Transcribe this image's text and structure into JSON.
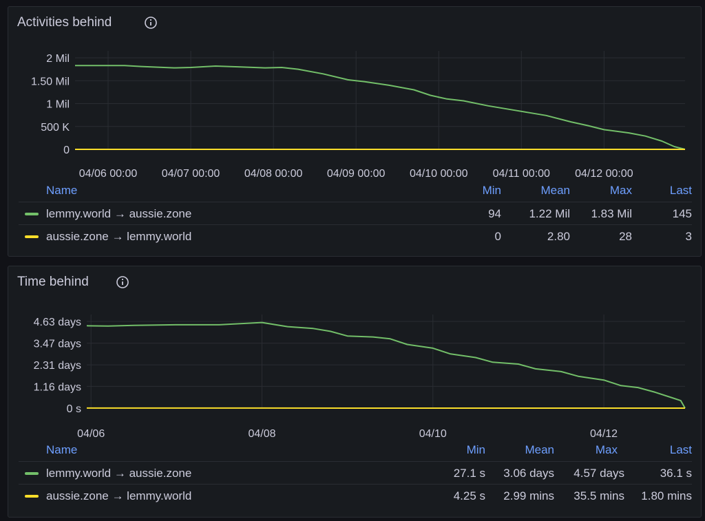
{
  "panels": [
    {
      "title": "Activities behind",
      "info_icon": "info-circle-icon",
      "chart_data": {
        "type": "line",
        "y_ticks": [
          "2 Mil",
          "1.50 Mil",
          "1 Mil",
          "500 K",
          "0"
        ],
        "y_tick_values": [
          2000000,
          1500000,
          1000000,
          500000,
          0
        ],
        "x_ticks": [
          "04/06 00:00",
          "04/07 00:00",
          "04/08 00:00",
          "04/09 00:00",
          "04/10 00:00",
          "04/11 00:00",
          "04/12 00:00"
        ],
        "x_tick_values": [
          0,
          1,
          2,
          3,
          4,
          5,
          6
        ],
        "x_range_days": [
          -0.4,
          6.98
        ],
        "ylim": [
          0,
          2000000
        ],
        "grid": true,
        "series": [
          {
            "name": "lemmy.world → aussie.zone",
            "color": "#73bf69",
            "points": [
              [
                -0.4,
                1830000
              ],
              [
                0.2,
                1830000
              ],
              [
                0.4,
                1810000
              ],
              [
                0.8,
                1780000
              ],
              [
                1.0,
                1790000
              ],
              [
                1.3,
                1820000
              ],
              [
                1.6,
                1800000
              ],
              [
                1.9,
                1780000
              ],
              [
                2.1,
                1790000
              ],
              [
                2.3,
                1750000
              ],
              [
                2.6,
                1650000
              ],
              [
                2.9,
                1520000
              ],
              [
                3.1,
                1480000
              ],
              [
                3.4,
                1400000
              ],
              [
                3.7,
                1300000
              ],
              [
                3.9,
                1180000
              ],
              [
                4.1,
                1100000
              ],
              [
                4.3,
                1060000
              ],
              [
                4.6,
                950000
              ],
              [
                4.9,
                860000
              ],
              [
                5.1,
                800000
              ],
              [
                5.3,
                740000
              ],
              [
                5.6,
                600000
              ],
              [
                5.8,
                520000
              ],
              [
                6.0,
                430000
              ],
              [
                6.3,
                360000
              ],
              [
                6.5,
                290000
              ],
              [
                6.7,
                180000
              ],
              [
                6.85,
                60000
              ],
              [
                6.98,
                145
              ]
            ]
          },
          {
            "name": "aussie.zone → lemmy.world",
            "color": "#fade2a",
            "points": [
              [
                -0.4,
                0
              ],
              [
                6.98,
                3
              ]
            ]
          }
        ]
      },
      "legend": {
        "headers": {
          "name": "Name",
          "min": "Min",
          "mean": "Mean",
          "max": "Max",
          "last": "Last"
        },
        "rows": [
          {
            "name": "lemmy.world → aussie.zone",
            "color": "#73bf69",
            "min": "94",
            "mean": "1.22 Mil",
            "max": "1.83 Mil",
            "last": "145"
          },
          {
            "name": "aussie.zone → lemmy.world",
            "color": "#fade2a",
            "min": "0",
            "mean": "2.80",
            "max": "28",
            "last": "3"
          }
        ]
      }
    },
    {
      "title": "Time behind",
      "info_icon": "info-circle-icon",
      "chart_data": {
        "type": "line",
        "y_ticks": [
          "4.63 days",
          "3.47 days",
          "2.31 days",
          "1.16 days",
          "0 s"
        ],
        "y_tick_values": [
          4.63,
          3.47,
          2.31,
          1.16,
          0
        ],
        "x_ticks": [
          "04/06",
          "04/08",
          "04/10",
          "04/12"
        ],
        "x_tick_values": [
          0,
          2,
          4,
          6
        ],
        "x_range_days": [
          -0.05,
          6.95
        ],
        "ylim": [
          0,
          4.63
        ],
        "grid": true,
        "series": [
          {
            "name": "lemmy.world → aussie.zone",
            "color": "#73bf69",
            "points": [
              [
                -0.05,
                4.4
              ],
              [
                0.2,
                4.38
              ],
              [
                0.5,
                4.42
              ],
              [
                1.0,
                4.45
              ],
              [
                1.5,
                4.45
              ],
              [
                1.9,
                4.55
              ],
              [
                2.0,
                4.57
              ],
              [
                2.3,
                4.35
              ],
              [
                2.6,
                4.25
              ],
              [
                2.8,
                4.1
              ],
              [
                3.0,
                3.85
              ],
              [
                3.3,
                3.8
              ],
              [
                3.5,
                3.7
              ],
              [
                3.7,
                3.4
              ],
              [
                4.0,
                3.2
              ],
              [
                4.2,
                2.9
              ],
              [
                4.5,
                2.7
              ],
              [
                4.7,
                2.45
              ],
              [
                5.0,
                2.35
              ],
              [
                5.2,
                2.1
              ],
              [
                5.5,
                1.95
              ],
              [
                5.7,
                1.7
              ],
              [
                6.0,
                1.5
              ],
              [
                6.2,
                1.2
              ],
              [
                6.4,
                1.1
              ],
              [
                6.6,
                0.85
              ],
              [
                6.8,
                0.55
              ],
              [
                6.9,
                0.4
              ],
              [
                6.95,
                0.0004
              ]
            ]
          },
          {
            "name": "aussie.zone → lemmy.world",
            "color": "#fade2a",
            "points": [
              [
                -0.05,
                0.002
              ],
              [
                6.95,
                0.00125
              ]
            ]
          }
        ]
      },
      "legend": {
        "headers": {
          "name": "Name",
          "min": "Min",
          "mean": "Mean",
          "max": "Max",
          "last": "Last"
        },
        "rows": [
          {
            "name": "lemmy.world → aussie.zone",
            "color": "#73bf69",
            "min": "27.1 s",
            "mean": "3.06 days",
            "max": "4.57 days",
            "last": "36.1 s"
          },
          {
            "name": "aussie.zone → lemmy.world",
            "color": "#fade2a",
            "min": "4.25 s",
            "mean": "2.99 mins",
            "max": "35.5 mins",
            "last": "1.80 mins"
          }
        ]
      }
    }
  ]
}
